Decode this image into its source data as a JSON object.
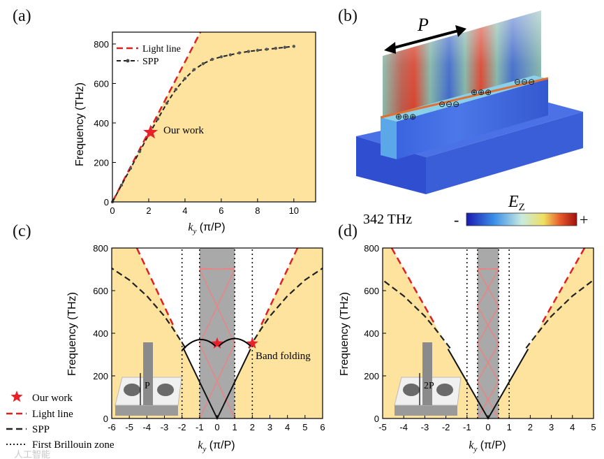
{
  "chart_data": [
    {
      "panel": "(a)",
      "type": "line",
      "xlabel_symbol": "k",
      "xlabel_sub": "y",
      "xlabel_unit": " (π/P)",
      "ylabel": "Frequency (THz)",
      "xlim": [
        0,
        11.2
      ],
      "ylim": [
        0,
        860
      ],
      "xticks": [
        0,
        2,
        4,
        6,
        8,
        10
      ],
      "yticks": [
        0,
        200,
        400,
        600,
        800
      ],
      "legend": [
        {
          "label": "Light line",
          "style": "dashed",
          "color": "#e02020"
        },
        {
          "label": "SPP",
          "style": "dashed-dotted",
          "color": "#222222"
        }
      ],
      "series": [
        {
          "name": "Light line",
          "x": [
            0,
            4.85
          ],
          "y": [
            0,
            860
          ]
        },
        {
          "name": "SPP",
          "x": [
            0,
            0.5,
            1.0,
            1.5,
            2.0,
            2.5,
            3.0,
            3.5,
            4.0,
            4.5,
            5.0,
            5.5,
            6.0,
            6.5,
            7.0,
            7.5,
            8.0,
            8.5,
            9.0,
            9.5,
            10.0
          ],
          "y": [
            0,
            85,
            170,
            255,
            340,
            420,
            500,
            570,
            625,
            670,
            700,
            722,
            735,
            745,
            755,
            762,
            768,
            773,
            778,
            783,
            788
          ]
        }
      ],
      "light_cone_fill": "#fde39e",
      "annotation": {
        "label": "Our work",
        "x": 2.1,
        "y": 352
      }
    },
    {
      "panel": "(c)",
      "type": "line",
      "xlabel_symbol": "k",
      "xlabel_sub": "y",
      "xlabel_unit": " (π/P)",
      "ylabel": "Frequency (THz)",
      "xlim": [
        -6,
        6
      ],
      "ylim": [
        0,
        800
      ],
      "xticks": [
        -6,
        -5,
        -4,
        -3,
        -2,
        -1,
        0,
        1,
        2,
        3,
        4,
        5,
        6
      ],
      "yticks": [
        0,
        200,
        400,
        600,
        800
      ],
      "brillouin_zone": [
        -1,
        1
      ],
      "dotted_lines": [
        -2,
        -1,
        1,
        2
      ],
      "light_slope": 175,
      "spp_fold_points": [
        {
          "x": -2,
          "y": 335
        },
        {
          "x": -1,
          "y": 175
        },
        {
          "x": 0,
          "y": 0
        },
        {
          "x": 1,
          "y": 175
        },
        {
          "x": 2,
          "y": 335
        }
      ],
      "spp_outer": [
        {
          "x": 2,
          "y": 335
        },
        {
          "x": 3,
          "y": 490
        },
        {
          "x": 4,
          "y": 610
        },
        {
          "x": 5,
          "y": 690
        },
        {
          "x": 6,
          "y": 740
        }
      ],
      "annotation_star": {
        "label": "Our work",
        "points": [
          [
            0,
            352
          ],
          [
            2,
            352
          ]
        ]
      },
      "annotation_text": "Band folding",
      "inset_label": "P",
      "legend": [
        {
          "label": "Our work",
          "marker": "star",
          "color": "#e02020"
        },
        {
          "label": "Light line",
          "style": "dashed",
          "color": "#e02020"
        },
        {
          "label": "SPP",
          "style": "dashed",
          "color": "#222222"
        },
        {
          "label": "First Brillouin zone",
          "style": "dotted",
          "color": "#222222"
        }
      ]
    },
    {
      "panel": "(d)",
      "type": "line",
      "xlabel_symbol": "k",
      "xlabel_sub": "y",
      "xlabel_unit": " (π/P)",
      "ylabel": "Frequency (THz)",
      "xlim": [
        -5,
        5
      ],
      "ylim": [
        0,
        800
      ],
      "xticks": [
        -5,
        -4,
        -3,
        -2,
        -1,
        0,
        1,
        2,
        3,
        4,
        5
      ],
      "yticks": [
        0,
        200,
        400,
        600,
        800
      ],
      "brillouin_zone": [
        -0.5,
        0.5
      ],
      "dotted_lines": [
        -1,
        -0.5,
        0.5,
        1
      ],
      "light_slope": 175,
      "inset_label": "2P"
    }
  ],
  "panel_b": {
    "letter": "(b)",
    "period_label": "P",
    "frequency_label": "342 THz",
    "field_label_main": "E",
    "field_label_sub": "Z",
    "minus": "-",
    "plus": "+",
    "charges_plus": "⊕⊕⊕",
    "charges_minus": "⊖⊖⊖"
  },
  "watermark": "人工智能",
  "colors": {
    "cone": "#fde39e",
    "light_line": "#e02020",
    "spp": "#222222",
    "zone": "#a9a9a9",
    "folded": "#f08080",
    "star": "#e8202a"
  }
}
